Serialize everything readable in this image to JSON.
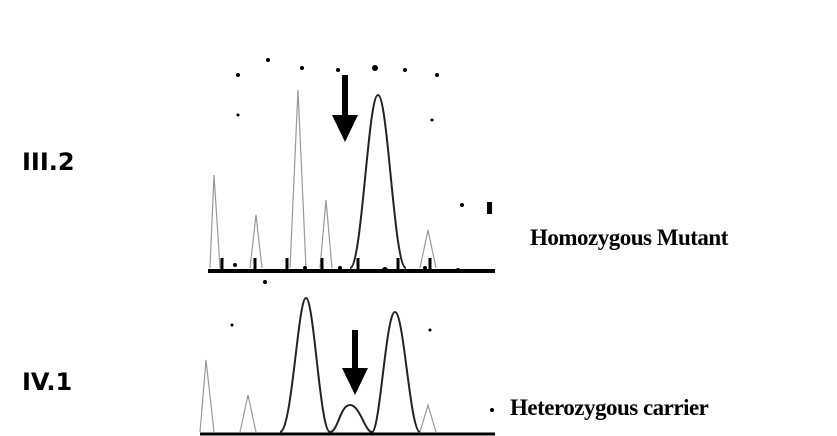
{
  "panels": [
    {
      "sample": "III.2",
      "result": "Homozygous Mutant"
    },
    {
      "sample": "IV.1",
      "result": "Heterozygous carrier"
    }
  ]
}
